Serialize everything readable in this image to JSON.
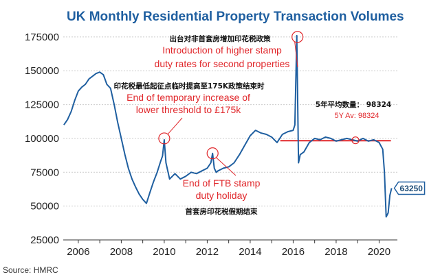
{
  "chart_data": {
    "type": "line",
    "title": "UK Monthly Residential Property Transaction Volumes",
    "source": "Source: HMRC",
    "ylim": [
      25000,
      180000
    ],
    "xlim": [
      2005.3,
      2020.85
    ],
    "y_ticks": [
      "25000",
      "50000",
      "75000",
      "100000",
      "125000",
      "150000",
      "175000"
    ],
    "y_tick_values": [
      25000,
      50000,
      75000,
      100000,
      125000,
      150000,
      175000
    ],
    "x_ticks": [
      "2006",
      "2008",
      "2010",
      "2012",
      "2014",
      "2016",
      "2018",
      "2020"
    ],
    "x_tick_values": [
      2006,
      2008,
      2010,
      2012,
      2014,
      2016,
      2018,
      2020
    ],
    "grid": "horizontal",
    "line_color": "#1f5fa0",
    "series": [
      {
        "x": [
          2005.33,
          2005.5,
          2005.67,
          2005.83,
          2006.0,
          2006.17,
          2006.33,
          2006.5,
          2006.67,
          2006.83,
          2007.0,
          2007.17,
          2007.33,
          2007.5,
          2007.67,
          2007.83,
          2008.0,
          2008.17,
          2008.33,
          2008.5,
          2008.67,
          2008.83,
          2009.0,
          2009.17,
          2009.33,
          2009.5,
          2009.67,
          2009.83,
          2009.92,
          2010.0,
          2010.08,
          2010.25,
          2010.5,
          2010.75,
          2011.0,
          2011.25,
          2011.5,
          2011.75,
          2012.0,
          2012.17,
          2012.25,
          2012.33,
          2012.42,
          2012.5,
          2012.75,
          2013.0,
          2013.25,
          2013.5,
          2013.75,
          2014.0,
          2014.25,
          2014.5,
          2014.75,
          2015.0,
          2015.25,
          2015.5,
          2015.75,
          2016.0,
          2016.08,
          2016.17,
          2016.25,
          2016.33,
          2016.5,
          2016.75,
          2017.0,
          2017.25,
          2017.5,
          2017.75,
          2018.0,
          2018.25,
          2018.5,
          2018.75,
          2019.0,
          2019.25,
          2019.5,
          2019.75,
          2020.0,
          2020.17,
          2020.25,
          2020.33,
          2020.42,
          2020.5,
          2020.58
        ],
        "values": [
          110000,
          114000,
          120000,
          128000,
          135000,
          138000,
          140000,
          144000,
          146000,
          148000,
          149000,
          147000,
          140000,
          137000,
          125000,
          112000,
          100000,
          88000,
          78000,
          70000,
          64000,
          59000,
          55000,
          52000,
          60000,
          68000,
          75000,
          83000,
          87000,
          99000,
          82000,
          70000,
          74000,
          70000,
          72000,
          75000,
          74000,
          76000,
          78000,
          82000,
          89000,
          78000,
          75000,
          76000,
          78000,
          79000,
          82000,
          88000,
          95000,
          102000,
          106000,
          104000,
          103000,
          101000,
          97000,
          103000,
          105000,
          106000,
          110000,
          176000,
          82000,
          88000,
          90000,
          97000,
          100000,
          99000,
          101000,
          100000,
          98000,
          99000,
          100000,
          99000,
          98000,
          100000,
          98000,
          99000,
          97000,
          92000,
          75000,
          42000,
          45000,
          58000,
          63250
        ]
      }
    ],
    "reference_line": {
      "y": 98324,
      "x_start": 2015.4,
      "x_end": 2020.55,
      "color": "#e0262a"
    },
    "end_value_label": "63250",
    "end_value": 63250,
    "annotations": [
      {
        "cn": "出台对非首套房增加印花税政策",
        "en": [
          "Introduction of higher stamp",
          "duty rates for second properties"
        ],
        "circle_x": 2016.2,
        "circle_y": 175000,
        "point_x": 2016.2,
        "point_y": 175000
      },
      {
        "cn": "印花税最低起征点临时提高至175K政策结束时",
        "en": [
          "End of temporary increase of",
          "lower threshold to £175k"
        ],
        "circle_x": 2010.0,
        "circle_y": 100000,
        "point_x": 2010.0,
        "point_y": 100000
      },
      {
        "cn": "首套房印花税假期结束",
        "en": [
          "End of FTB stamp",
          "duty holiday"
        ],
        "circle_x": 2012.25,
        "circle_y": 89000,
        "point_x": 2012.25,
        "point_y": 89000
      },
      {
        "cn": "5年平均数量： 98324",
        "en": [
          "5Y Av: 98324"
        ],
        "circle_x": 2018.9,
        "circle_y": 98600
      }
    ]
  }
}
